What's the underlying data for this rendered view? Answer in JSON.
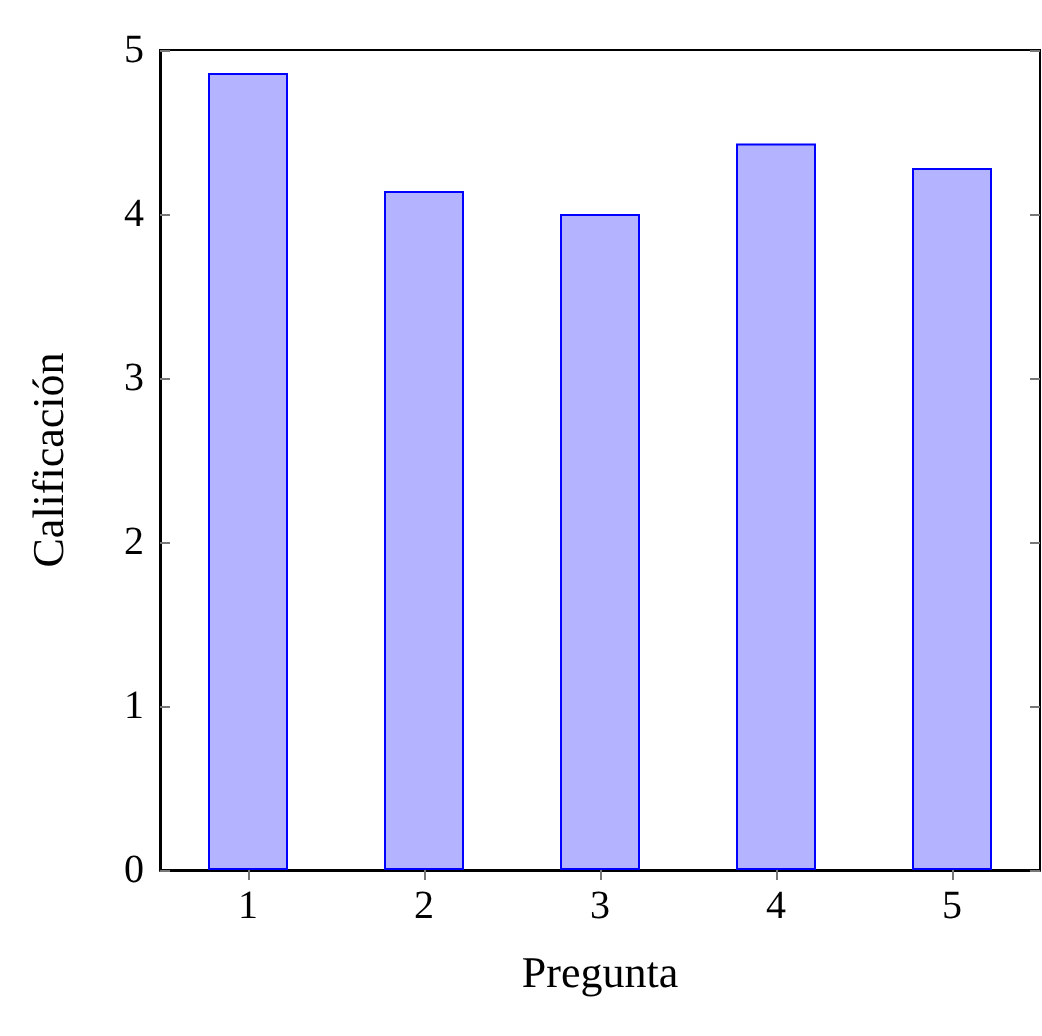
{
  "chart_data": {
    "type": "bar",
    "xlabel": "Pregunta",
    "ylabel": "Calificación",
    "categories": [
      "1",
      "2",
      "3",
      "4",
      "5"
    ],
    "values": [
      4.86,
      4.14,
      4.0,
      4.43,
      4.28
    ],
    "color": "#b3b3ff",
    "ylim": [
      0,
      5
    ],
    "yticks": [
      0,
      1,
      2,
      3,
      4,
      5
    ],
    "grid": false
  }
}
